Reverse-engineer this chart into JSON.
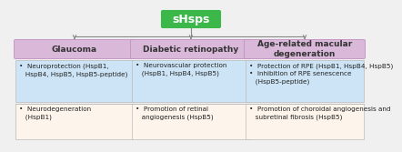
{
  "title": "sHsps",
  "title_bg": "#3cb84a",
  "title_color": "white",
  "title_fontsize": 9,
  "categories": [
    "Glaucoma",
    "Diabetic retinopathy",
    "Age-related macular\ndegeneration"
  ],
  "cat_bg": "#dab8da",
  "cat_border": "#c090c0",
  "cat_fontsize": 6.5,
  "blue_boxes": [
    {
      "col": 0,
      "text": "•  Neuroprotection (HspB1,\n   HspB4, HspB5, HspB5-peptide)"
    },
    {
      "col": 1,
      "text": "•  Neurovascular protection\n   (HspB1, HspB4, HspB5)"
    },
    {
      "col": 2,
      "text": "•  Protection of RPE (HspB1, HspB4, HspB5)\n•  Inhibition of RPE senescence\n   (HspB5-peptide)"
    }
  ],
  "white_boxes": [
    {
      "col": 0,
      "text": "•  Neurodegeneration\n   (HspB1)"
    },
    {
      "col": 1,
      "text": "•  Promotion of retinal\n   angiogenesis (HspB5)"
    },
    {
      "col": 2,
      "text": "•  Promotion of choroidal angiogenesis and\n   subretinal fibrosis (HspB5)"
    }
  ],
  "blue_bg": "#cce4f5",
  "white_bg": "#fdf5ec",
  "text_fontsize": 5.2,
  "border_color": "#bbbbbb",
  "line_color": "#888888",
  "fig_bg": "#f0f0f0",
  "fig_width": 4.0,
  "fig_height": 1.47
}
